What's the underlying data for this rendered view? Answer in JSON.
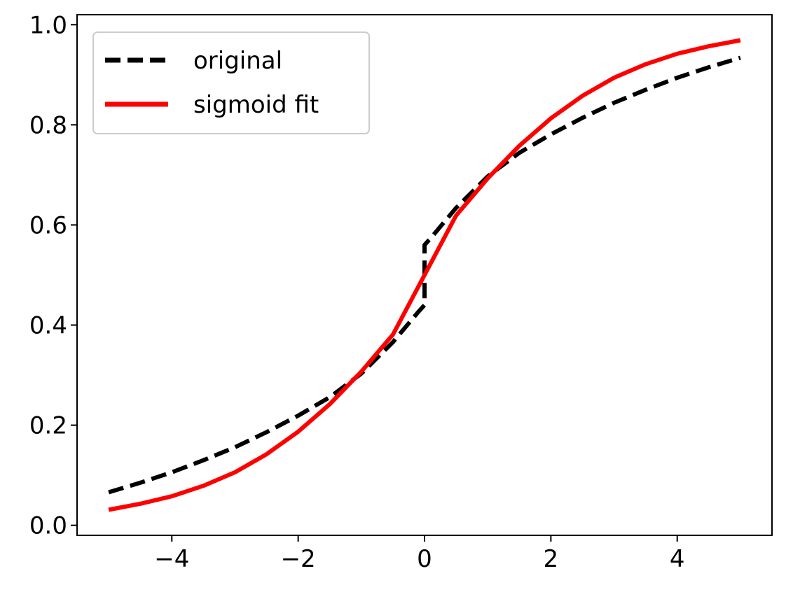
{
  "chart_data": {
    "type": "line",
    "title": "",
    "xlabel": "",
    "ylabel": "",
    "xlim": [
      -5.5,
      5.5
    ],
    "ylim": [
      -0.02,
      1.02
    ],
    "xticks": [
      -4,
      -2,
      0,
      2,
      4
    ],
    "xtick_labels": [
      "−4",
      "−2",
      "0",
      "2",
      "4"
    ],
    "yticks": [
      0.0,
      0.2,
      0.4,
      0.6,
      0.8,
      1.0
    ],
    "ytick_labels": [
      "0.0",
      "0.2",
      "0.4",
      "0.6",
      "0.8",
      "1.0"
    ],
    "grid": false,
    "legend_position": "top-left",
    "series": [
      {
        "name": "original",
        "color": "#000000",
        "style": "dashed",
        "points": [
          [
            -5,
            0.066
          ],
          [
            -4.5,
            0.085
          ],
          [
            -4,
            0.106
          ],
          [
            -3.5,
            0.13
          ],
          [
            -3,
            0.156
          ],
          [
            -2.5,
            0.186
          ],
          [
            -2,
            0.219
          ],
          [
            -1.5,
            0.256
          ],
          [
            -1,
            0.303
          ],
          [
            -0.5,
            0.366
          ],
          [
            -0.1,
            0.426
          ],
          [
            0,
            0.44
          ],
          [
            0,
            0.56
          ],
          [
            0.1,
            0.574
          ],
          [
            0.5,
            0.634
          ],
          [
            1,
            0.697
          ],
          [
            1.5,
            0.744
          ],
          [
            2,
            0.781
          ],
          [
            2.5,
            0.814
          ],
          [
            3,
            0.844
          ],
          [
            3.5,
            0.87
          ],
          [
            4,
            0.894
          ],
          [
            4.5,
            0.915
          ],
          [
            5,
            0.934
          ]
        ]
      },
      {
        "name": "sigmoid fit",
        "color": "#ff0000",
        "style": "solid",
        "points": [
          [
            -5,
            0.031
          ],
          [
            -4.5,
            0.043
          ],
          [
            -4,
            0.058
          ],
          [
            -3.5,
            0.079
          ],
          [
            -3,
            0.106
          ],
          [
            -2.5,
            0.142
          ],
          [
            -2,
            0.187
          ],
          [
            -1.5,
            0.242
          ],
          [
            -1,
            0.307
          ],
          [
            -0.5,
            0.381
          ],
          [
            0,
            0.5
          ],
          [
            0.5,
            0.619
          ],
          [
            1,
            0.693
          ],
          [
            1.5,
            0.758
          ],
          [
            2,
            0.813
          ],
          [
            2.5,
            0.858
          ],
          [
            3,
            0.894
          ],
          [
            3.5,
            0.921
          ],
          [
            4,
            0.942
          ],
          [
            4.5,
            0.957
          ],
          [
            5,
            0.969
          ]
        ]
      }
    ]
  }
}
